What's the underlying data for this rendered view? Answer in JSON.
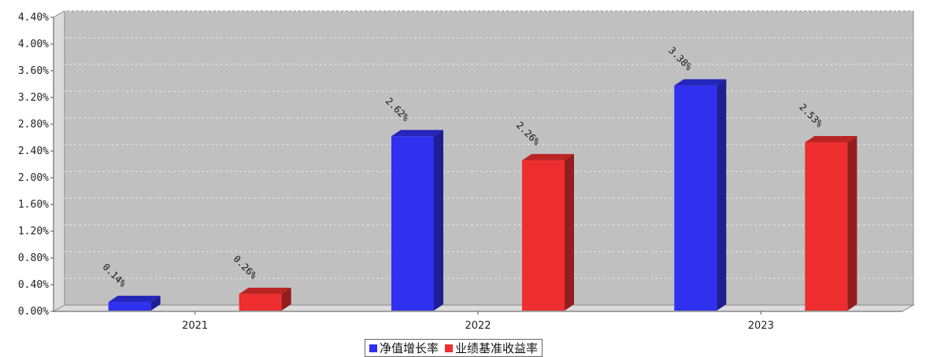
{
  "colors": {
    "series1": "#3030F0",
    "series2": "#EE2E2E",
    "plot_bg": "#C0C0C0"
  },
  "chart_data": {
    "type": "bar",
    "title": "",
    "categories": [
      "2021",
      "2022",
      "2023"
    ],
    "series": [
      {
        "name": "净值增长率",
        "values": [
          0.14,
          2.62,
          3.38
        ],
        "labels": [
          "0.14%",
          "2.62%",
          "3.38%"
        ]
      },
      {
        "name": "业绩基准收益率",
        "values": [
          0.26,
          2.26,
          2.53
        ],
        "labels": [
          "0.26%",
          "2.26%",
          "2.53%"
        ]
      }
    ],
    "y_ticks": [
      "0.00%",
      "0.40%",
      "0.80%",
      "1.20%",
      "1.60%",
      "2.00%",
      "2.40%",
      "2.80%",
      "3.20%",
      "3.60%",
      "4.00%",
      "4.40%"
    ],
    "ylim": [
      0,
      4.4
    ],
    "grid": true,
    "legend_position": "bottom"
  }
}
